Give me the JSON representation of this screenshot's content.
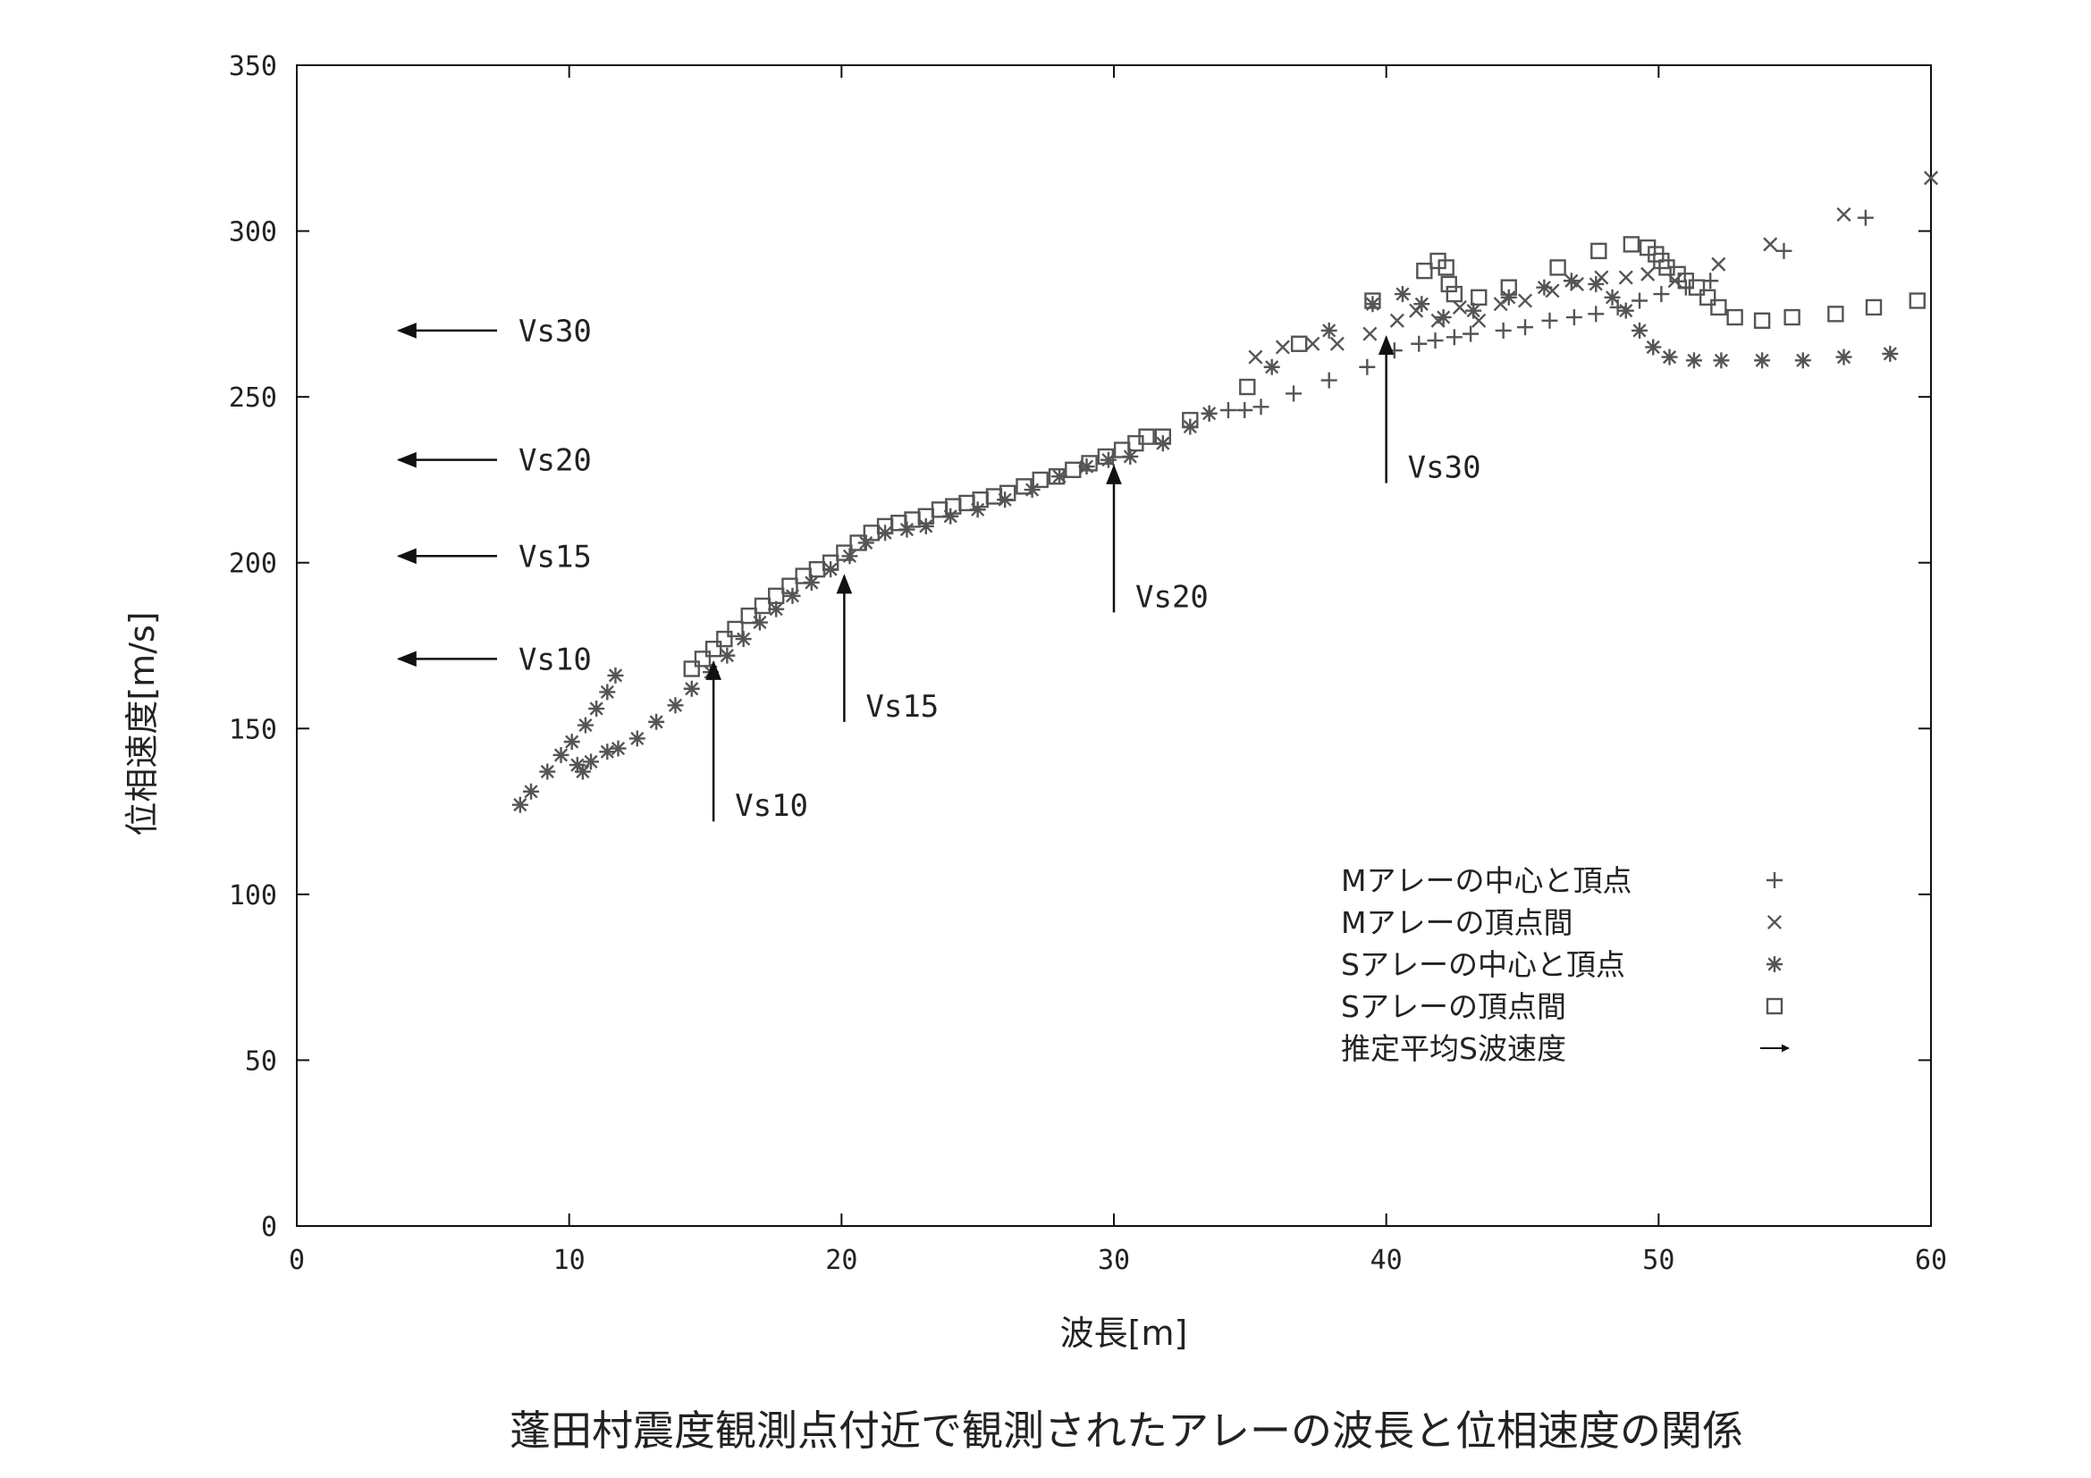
{
  "caption": "蓬田村震度観測点付近で観測されたアレーの波長と位相速度の関係",
  "chart_data": {
    "type": "scatter",
    "xlabel": "波長[m]",
    "ylabel": "位相速度[m/s]",
    "xlim": [
      0,
      60
    ],
    "ylim": [
      0,
      350
    ],
    "x_ticks": [
      0,
      10,
      20,
      30,
      40,
      50,
      60
    ],
    "y_ticks": [
      0,
      50,
      100,
      150,
      200,
      250,
      300,
      350
    ],
    "grid": false,
    "legend_position": "bottom-right",
    "series": [
      {
        "name": "Mアレーの中心と頂点",
        "marker": "plus",
        "points": [
          [
            33.5,
            245
          ],
          [
            34.2,
            246
          ],
          [
            34.8,
            246
          ],
          [
            35.4,
            247
          ],
          [
            36.6,
            251
          ],
          [
            37.9,
            255
          ],
          [
            39.3,
            259
          ],
          [
            40.3,
            264
          ],
          [
            41.2,
            266
          ],
          [
            41.8,
            267
          ],
          [
            42.5,
            268
          ],
          [
            43.1,
            269
          ],
          [
            44.3,
            270
          ],
          [
            45.1,
            271
          ],
          [
            46,
            273
          ],
          [
            46.9,
            274
          ],
          [
            47.7,
            275
          ],
          [
            48.5,
            277
          ],
          [
            49.3,
            279
          ],
          [
            50.1,
            281
          ],
          [
            51,
            283
          ],
          [
            51.9,
            285
          ],
          [
            54.6,
            294
          ],
          [
            57.6,
            304
          ]
        ]
      },
      {
        "name": "Mアレーの頂点間",
        "marker": "cross",
        "points": [
          [
            35.2,
            262
          ],
          [
            36.2,
            265
          ],
          [
            37.3,
            266
          ],
          [
            38.2,
            266
          ],
          [
            39.4,
            269
          ],
          [
            40.4,
            273
          ],
          [
            41.1,
            276
          ],
          [
            41.9,
            273
          ],
          [
            42.7,
            277
          ],
          [
            43.4,
            273
          ],
          [
            44.2,
            278
          ],
          [
            45.1,
            279
          ],
          [
            46.1,
            282
          ],
          [
            47,
            284
          ],
          [
            47.9,
            286
          ],
          [
            48.8,
            286
          ],
          [
            49.6,
            287
          ],
          [
            50.6,
            285
          ],
          [
            52.2,
            290
          ],
          [
            54.1,
            296
          ],
          [
            56.8,
            305
          ],
          [
            60,
            316
          ]
        ]
      },
      {
        "name": "Sアレーの中心と頂点",
        "marker": "asterisk",
        "points": [
          [
            8.2,
            127
          ],
          [
            8.6,
            131
          ],
          [
            9.2,
            137
          ],
          [
            9.7,
            142
          ],
          [
            10.1,
            146
          ],
          [
            10.6,
            151
          ],
          [
            11,
            156
          ],
          [
            11.4,
            161
          ],
          [
            11.7,
            166
          ],
          [
            10.3,
            139
          ],
          [
            10.5,
            137
          ],
          [
            10.8,
            140
          ],
          [
            11.4,
            143
          ],
          [
            11.8,
            144
          ],
          [
            12.5,
            147
          ],
          [
            13.2,
            152
          ],
          [
            13.9,
            157
          ],
          [
            14.5,
            162
          ],
          [
            15.2,
            167
          ],
          [
            15.8,
            172
          ],
          [
            16.4,
            177
          ],
          [
            17,
            182
          ],
          [
            17.6,
            186
          ],
          [
            18.2,
            190
          ],
          [
            18.9,
            194
          ],
          [
            19.6,
            198
          ],
          [
            20.3,
            202
          ],
          [
            20.9,
            206
          ],
          [
            21.6,
            209
          ],
          [
            22.4,
            210
          ],
          [
            23.1,
            211
          ],
          [
            24,
            214
          ],
          [
            25,
            216
          ],
          [
            26,
            219
          ],
          [
            27,
            222
          ],
          [
            28,
            226
          ],
          [
            29,
            229
          ],
          [
            29.8,
            231
          ],
          [
            30.6,
            232
          ],
          [
            31.8,
            236
          ],
          [
            32.8,
            241
          ],
          [
            33.5,
            245
          ],
          [
            35.8,
            259
          ],
          [
            37.9,
            270
          ],
          [
            39.5,
            278
          ],
          [
            40.6,
            281
          ],
          [
            41.3,
            278
          ],
          [
            42.1,
            274
          ],
          [
            43.2,
            276
          ],
          [
            44.5,
            280
          ],
          [
            45.8,
            283
          ],
          [
            46.8,
            285
          ],
          [
            47.7,
            284
          ],
          [
            48.3,
            280
          ],
          [
            48.8,
            276
          ],
          [
            49.3,
            270
          ],
          [
            49.8,
            265
          ],
          [
            50.4,
            262
          ],
          [
            51.3,
            261
          ],
          [
            52.3,
            261
          ],
          [
            53.8,
            261
          ],
          [
            55.3,
            261
          ],
          [
            56.8,
            262
          ],
          [
            58.5,
            263
          ]
        ]
      },
      {
        "name": "Sアレーの頂点間",
        "marker": "square",
        "points": [
          [
            14.5,
            168
          ],
          [
            14.9,
            171
          ],
          [
            15.3,
            174
          ],
          [
            15.7,
            177
          ],
          [
            16.1,
            180
          ],
          [
            16.6,
            184
          ],
          [
            17.1,
            187
          ],
          [
            17.6,
            190
          ],
          [
            18.1,
            193
          ],
          [
            18.6,
            196
          ],
          [
            19.1,
            198
          ],
          [
            19.6,
            200
          ],
          [
            20.1,
            203
          ],
          [
            20.6,
            206
          ],
          [
            21.1,
            209
          ],
          [
            21.6,
            211
          ],
          [
            22.1,
            212
          ],
          [
            22.6,
            213
          ],
          [
            23.1,
            214
          ],
          [
            23.6,
            216
          ],
          [
            24.1,
            217
          ],
          [
            24.6,
            218
          ],
          [
            25.1,
            219
          ],
          [
            25.6,
            220
          ],
          [
            26.1,
            221
          ],
          [
            26.7,
            223
          ],
          [
            27.3,
            225
          ],
          [
            27.9,
            226
          ],
          [
            28.5,
            228
          ],
          [
            29.1,
            230
          ],
          [
            29.7,
            232
          ],
          [
            30.3,
            234
          ],
          [
            30.8,
            236
          ],
          [
            31.2,
            238
          ],
          [
            31.8,
            238
          ],
          [
            32.8,
            243
          ],
          [
            34.9,
            253
          ],
          [
            36.8,
            266
          ],
          [
            39.5,
            279
          ],
          [
            41.4,
            288
          ],
          [
            41.9,
            291
          ],
          [
            42.2,
            289
          ],
          [
            42.3,
            284
          ],
          [
            42.5,
            281
          ],
          [
            43.4,
            280
          ],
          [
            44.5,
            283
          ],
          [
            46.3,
            289
          ],
          [
            47.8,
            294
          ],
          [
            49,
            296
          ],
          [
            49.6,
            295
          ],
          [
            49.9,
            293
          ],
          [
            50.1,
            291
          ],
          [
            50.3,
            289
          ],
          [
            50.7,
            287
          ],
          [
            51,
            285
          ],
          [
            51.4,
            283
          ],
          [
            51.8,
            280
          ],
          [
            52.2,
            277
          ],
          [
            52.8,
            274
          ],
          [
            53.8,
            273
          ],
          [
            54.9,
            274
          ],
          [
            56.5,
            275
          ],
          [
            57.9,
            277
          ],
          [
            59.5,
            279
          ]
        ]
      },
      {
        "name": "推定平均S波速度",
        "marker": "arrow",
        "points": []
      }
    ],
    "vs_horizontal": [
      {
        "label": "Vs30",
        "value": 270
      },
      {
        "label": "Vs20",
        "value": 231
      },
      {
        "label": "Vs15",
        "value": 202
      },
      {
        "label": "Vs10",
        "value": 171
      }
    ],
    "vs_vertical": [
      {
        "label": "Vs10",
        "x": 15.3,
        "v_from": 122,
        "v_to": 170
      },
      {
        "label": "Vs15",
        "x": 20.1,
        "v_from": 152,
        "v_to": 196
      },
      {
        "label": "Vs20",
        "x": 30,
        "v_from": 185,
        "v_to": 229
      },
      {
        "label": "Vs30",
        "x": 40,
        "v_from": 224,
        "v_to": 268
      }
    ]
  }
}
